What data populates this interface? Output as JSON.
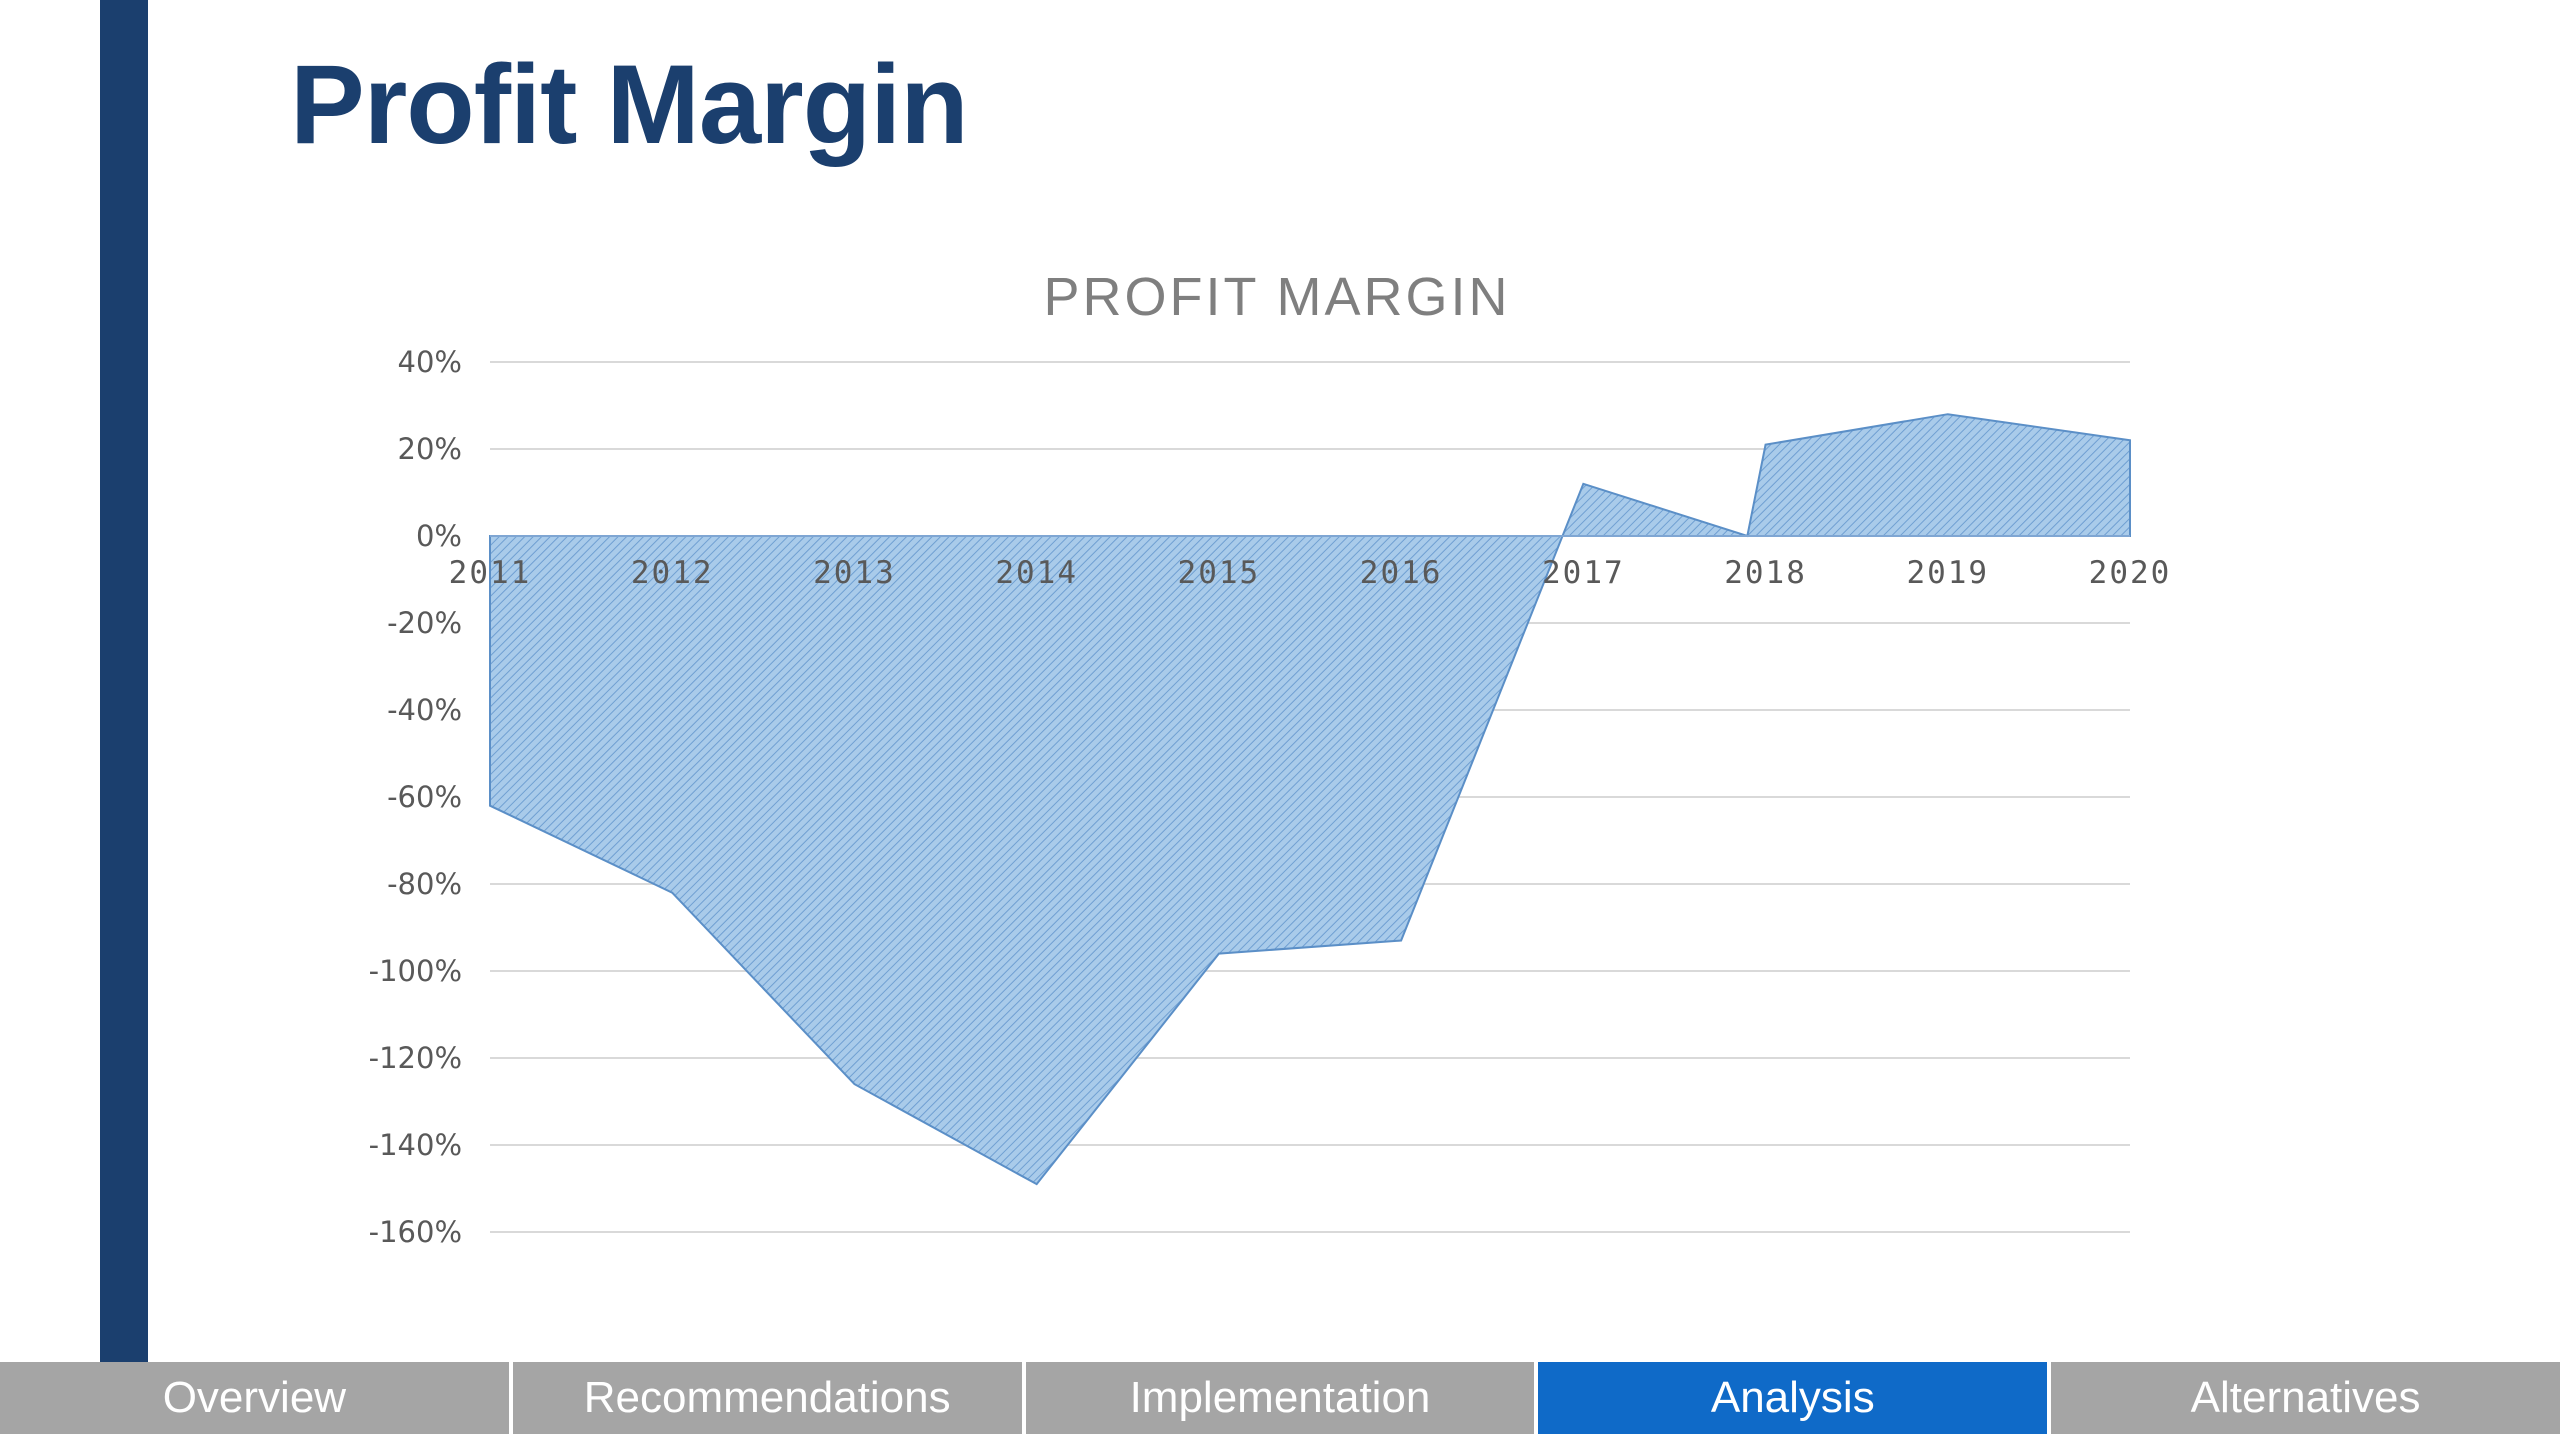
{
  "page": {
    "title": "Profit Margin"
  },
  "colors": {
    "accent_bar": "#1b3f6e",
    "title": "#1b3f6e",
    "area_fill": "#9dc3e6",
    "area_stroke": "#5b8fc7",
    "tab_inactive": "#a5a5a5",
    "tab_active": "#0f6ac8"
  },
  "chart_data": {
    "type": "area",
    "title": "PROFIT MARGIN",
    "xlabel": "",
    "ylabel": "",
    "x": [
      "2011",
      "2012",
      "2013",
      "2014",
      "2015",
      "2016",
      "2017",
      "2018",
      "2019",
      "2020"
    ],
    "values": [
      -62,
      -82,
      -126,
      -149,
      -96,
      -93,
      12,
      21,
      28,
      22
    ],
    "zero_crossing_x": 6.9,
    "unit": "%",
    "ylim": [
      -160,
      40
    ],
    "yticks": [
      40,
      20,
      0,
      -20,
      -40,
      -60,
      -80,
      -100,
      -120,
      -140,
      -160
    ],
    "ytick_labels": [
      "40%",
      "20%",
      "0%",
      "-20%",
      "-40%",
      "-60%",
      "-80%",
      "-100%",
      "-120%",
      "-140%",
      "-160%"
    ],
    "grid": true,
    "legend": "none"
  },
  "nav": {
    "tabs": [
      {
        "label": "Overview",
        "active": false
      },
      {
        "label": "Recommendations",
        "active": false
      },
      {
        "label": "Implementation",
        "active": false
      },
      {
        "label": "Analysis",
        "active": true
      },
      {
        "label": "Alternatives",
        "active": false
      }
    ]
  }
}
